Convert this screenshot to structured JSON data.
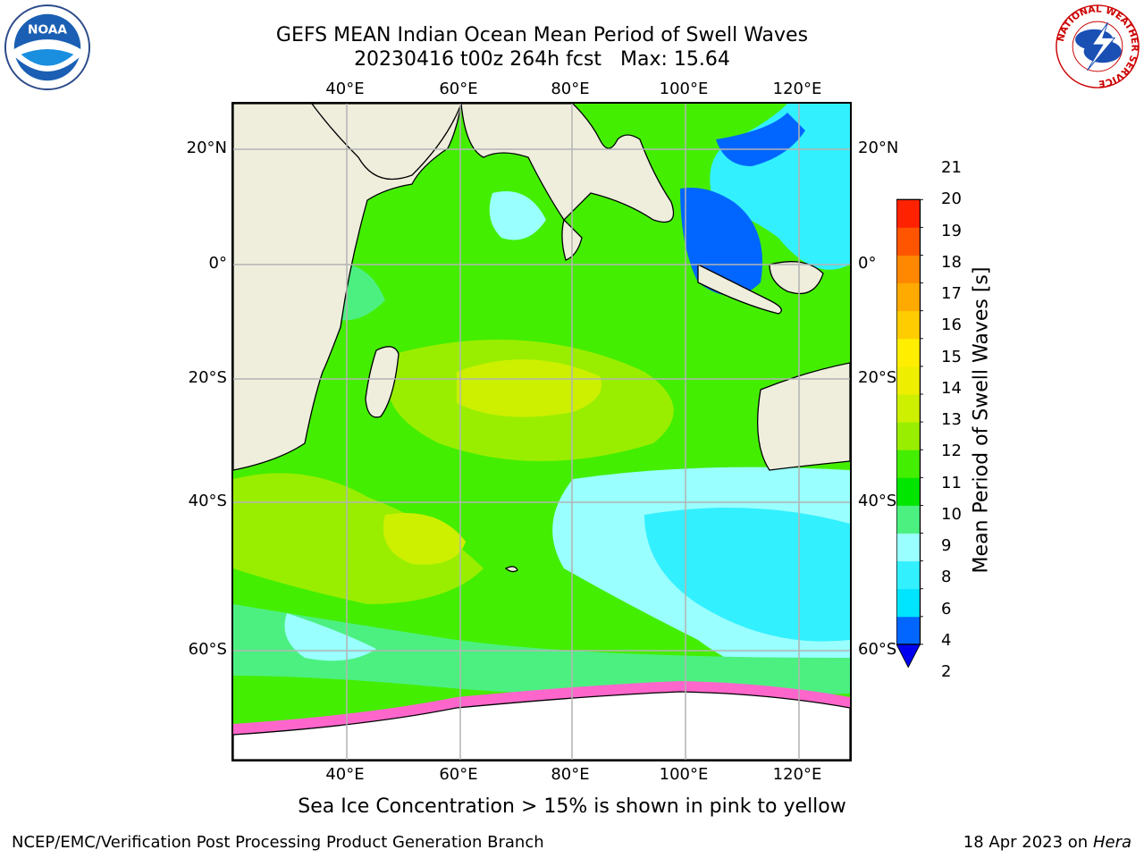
{
  "header": {
    "title": "GEFS MEAN Indian Ocean Mean Period of Swell Waves",
    "subtitle": "20230416 t00z 264h fcst",
    "max_label": "Max: 15.64"
  },
  "axes": {
    "lon_labels": [
      "40°E",
      "60°E",
      "80°E",
      "100°E",
      "120°E"
    ],
    "lat_labels": [
      "20°N",
      "0°",
      "20°S",
      "40°S",
      "60°S"
    ]
  },
  "colorbar": {
    "title": "Mean Period of Swell Waves [s]",
    "levels": [
      "2",
      "4",
      "6",
      "8",
      "9",
      "10",
      "11",
      "12",
      "13",
      "14",
      "15",
      "16",
      "17",
      "18",
      "19",
      "20",
      "21"
    ],
    "colors": [
      "#0066ff",
      "#00e5ff",
      "#33f0ff",
      "#99ffff",
      "#4cf080",
      "#00e600",
      "#44ee00",
      "#99ee00",
      "#ccf000",
      "#eeee00",
      "#ffee00",
      "#ffcc00",
      "#ffaa00",
      "#ff8800",
      "#ff5500",
      "#ff2200"
    ],
    "under_color": "#0000ee"
  },
  "notes": {
    "ice": "Sea Ice Concentration > 15% is shown in pink to yellow"
  },
  "footer": {
    "org": "NCEP/EMC/Verification Post Processing Product Generation Branch",
    "date": "18 Apr 2023 on",
    "machine": "Hera"
  },
  "logos": {
    "left": "NOAA",
    "right_ring": "NATIONAL WEATHER SERVICE"
  },
  "colors": {
    "land": "#efeedd",
    "grid": "#b4b4b4"
  }
}
